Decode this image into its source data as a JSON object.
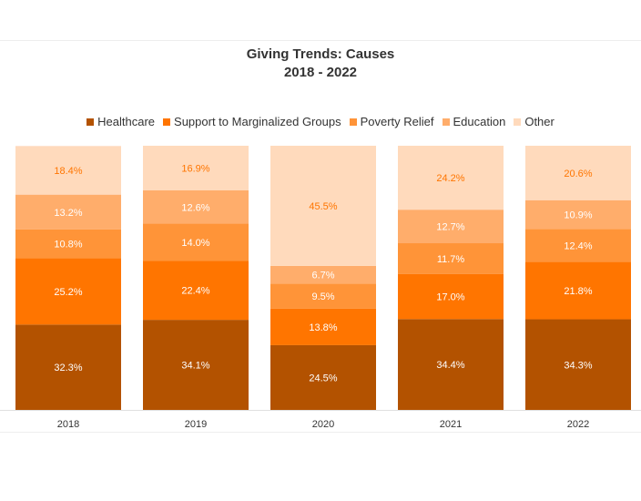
{
  "title_line1": "Giving Trends: Causes",
  "title_line2": "2018 - 2022",
  "chart_data": {
    "type": "bar",
    "stacked": true,
    "title": "Giving Trends: Causes 2018 - 2022",
    "categories": [
      "2018",
      "2019",
      "2020",
      "2021",
      "2022"
    ],
    "ylim": [
      0,
      100
    ],
    "grid": false,
    "legend_position": "top",
    "series": [
      {
        "name": "Healthcare",
        "color": "#b35200",
        "label_color": "#ffffff",
        "values": [
          32.3,
          34.1,
          24.5,
          34.4,
          34.3
        ],
        "labels": [
          "32.3%",
          "34.1%",
          "24.5%",
          "34.4%",
          "34.3%"
        ]
      },
      {
        "name": "Support to Marginalized Groups",
        "color": "#ff7500",
        "label_color": "#ffffff",
        "values": [
          25.2,
          22.4,
          13.8,
          17.0,
          21.8
        ],
        "labels": [
          "25.2%",
          "22.4%",
          "13.8%",
          "17.0%",
          "21.8%"
        ]
      },
      {
        "name": "Poverty Relief",
        "color": "#ff9438",
        "label_color": "#ffffff",
        "values": [
          10.8,
          14.0,
          9.5,
          11.7,
          12.4
        ],
        "labels": [
          "10.8%",
          "14.0%",
          "9.5%",
          "11.7%",
          "12.4%"
        ]
      },
      {
        "name": "Education",
        "color": "#ffad6b",
        "label_color": "#ffffff",
        "values": [
          13.2,
          12.6,
          6.7,
          12.7,
          10.9
        ],
        "labels": [
          "13.2%",
          "12.6%",
          "6.7%",
          "12.7%",
          "10.9%"
        ]
      },
      {
        "name": "Other",
        "color": "#ffdabc",
        "label_color": "#ff7500",
        "values": [
          18.4,
          16.9,
          45.5,
          24.2,
          20.6
        ],
        "labels": [
          "18.4%",
          "16.9%",
          "45.5%",
          "24.2%",
          "20.6%"
        ]
      }
    ]
  }
}
